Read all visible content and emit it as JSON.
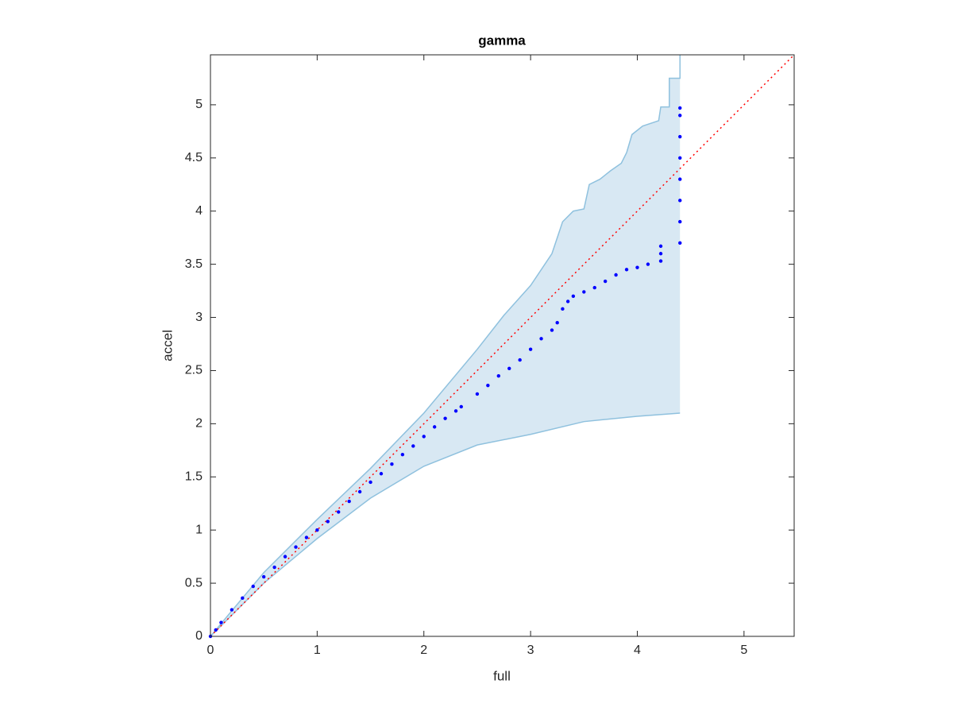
{
  "chart_data": {
    "type": "scatter",
    "title": "gamma",
    "xlabel": "full",
    "ylabel": "accel",
    "xlim": [
      0,
      5.47
    ],
    "ylim": [
      0,
      5.47
    ],
    "xticks": [
      0,
      1,
      2,
      3,
      4,
      5
    ],
    "yticks": [
      0,
      0.5,
      1,
      1.5,
      2,
      2.5,
      3,
      3.5,
      4,
      4.5,
      5
    ],
    "band": {
      "fill": "#d8e8f3",
      "color": "#8fc1de",
      "upper": {
        "x": [
          0,
          0.5,
          1,
          1.5,
          2,
          2.5,
          2.75,
          3,
          3.2,
          3.3,
          3.4,
          3.5,
          3.55,
          3.65,
          3.75,
          3.85,
          3.9,
          3.95,
          4.05,
          4.2,
          4.22,
          4.3,
          4.3,
          4.4,
          4.4
        ],
        "y": [
          0,
          0.6,
          1.1,
          1.58,
          2.1,
          2.7,
          3.02,
          3.3,
          3.6,
          3.9,
          4.0,
          4.02,
          4.25,
          4.3,
          4.38,
          4.45,
          4.55,
          4.72,
          4.8,
          4.85,
          4.98,
          4.98,
          5.25,
          5.25,
          5.47
        ]
      },
      "lower": {
        "x": [
          0,
          0.5,
          1,
          1.5,
          2,
          2.5,
          3,
          3.5,
          4,
          4.4
        ],
        "y": [
          0,
          0.5,
          0.92,
          1.3,
          1.6,
          1.8,
          1.9,
          2.02,
          2.07,
          2.1
        ]
      }
    },
    "reference_line": {
      "x": [
        0,
        5.47
      ],
      "y": [
        0,
        5.47
      ],
      "color": "#ff0000"
    },
    "points": {
      "color": "#0000ff",
      "x": [
        0,
        0.05,
        0.1,
        0.2,
        0.3,
        0.4,
        0.5,
        0.6,
        0.7,
        0.8,
        0.9,
        1.0,
        1.1,
        1.2,
        1.3,
        1.4,
        1.5,
        1.6,
        1.7,
        1.8,
        1.9,
        2.0,
        2.1,
        2.2,
        2.3,
        2.35,
        2.5,
        2.6,
        2.7,
        2.8,
        2.9,
        3.0,
        3.1,
        3.2,
        3.25,
        3.3,
        3.35,
        3.4,
        3.5,
        3.6,
        3.7,
        3.8,
        3.9,
        4.0,
        4.1,
        4.22,
        4.22,
        4.22,
        4.4,
        4.4,
        4.4,
        4.4,
        4.4,
        4.4,
        4.4,
        4.4
      ],
      "y": [
        0,
        0.06,
        0.13,
        0.25,
        0.36,
        0.47,
        0.56,
        0.65,
        0.75,
        0.84,
        0.93,
        1.0,
        1.08,
        1.17,
        1.27,
        1.36,
        1.45,
        1.53,
        1.62,
        1.71,
        1.79,
        1.88,
        1.97,
        2.05,
        2.12,
        2.16,
        2.28,
        2.36,
        2.45,
        2.52,
        2.6,
        2.7,
        2.8,
        2.88,
        2.95,
        3.08,
        3.15,
        3.2,
        3.24,
        3.28,
        3.34,
        3.4,
        3.45,
        3.47,
        3.5,
        3.53,
        3.6,
        3.67,
        3.7,
        3.9,
        4.1,
        4.3,
        4.5,
        4.7,
        4.9,
        4.97
      ]
    }
  }
}
